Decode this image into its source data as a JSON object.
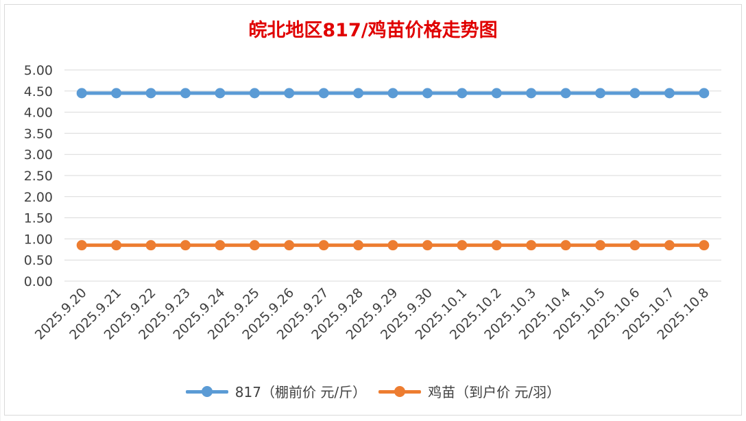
{
  "chart_data": {
    "type": "line",
    "title": "皖北地区817/鸡苗价格走势图",
    "categories": [
      "2025.9.20",
      "2025.9.21",
      "2025.9.22",
      "2025.9.23",
      "2025.9.24",
      "2025.9.25",
      "2025.9.26",
      "2025.9.27",
      "2025.9.28",
      "2025.9.29",
      "2025.9.30",
      "2025.10.1",
      "2025.10.2",
      "2025.10.3",
      "2025.10.4",
      "2025.10.5",
      "2025.10.6",
      "2025.10.7",
      "2025.10.8"
    ],
    "yticks": [
      "0.00",
      "0.50",
      "1.00",
      "1.50",
      "2.00",
      "2.50",
      "3.00",
      "3.50",
      "4.00",
      "4.50",
      "5.00"
    ],
    "ylim": [
      0,
      5
    ],
    "grid": true,
    "legend_position": "bottom",
    "series": [
      {
        "name": "817（棚前价 元/斤）",
        "color": "#5b9bd5",
        "values": [
          4.45,
          4.45,
          4.45,
          4.45,
          4.45,
          4.45,
          4.45,
          4.45,
          4.45,
          4.45,
          4.45,
          4.45,
          4.45,
          4.45,
          4.45,
          4.45,
          4.45,
          4.45,
          4.45
        ]
      },
      {
        "name": "鸡苗（到户价 元/羽）",
        "color": "#ed7d31",
        "values": [
          0.85,
          0.85,
          0.85,
          0.85,
          0.85,
          0.85,
          0.85,
          0.85,
          0.85,
          0.85,
          0.85,
          0.85,
          0.85,
          0.85,
          0.85,
          0.85,
          0.85,
          0.85,
          0.85
        ]
      }
    ]
  }
}
